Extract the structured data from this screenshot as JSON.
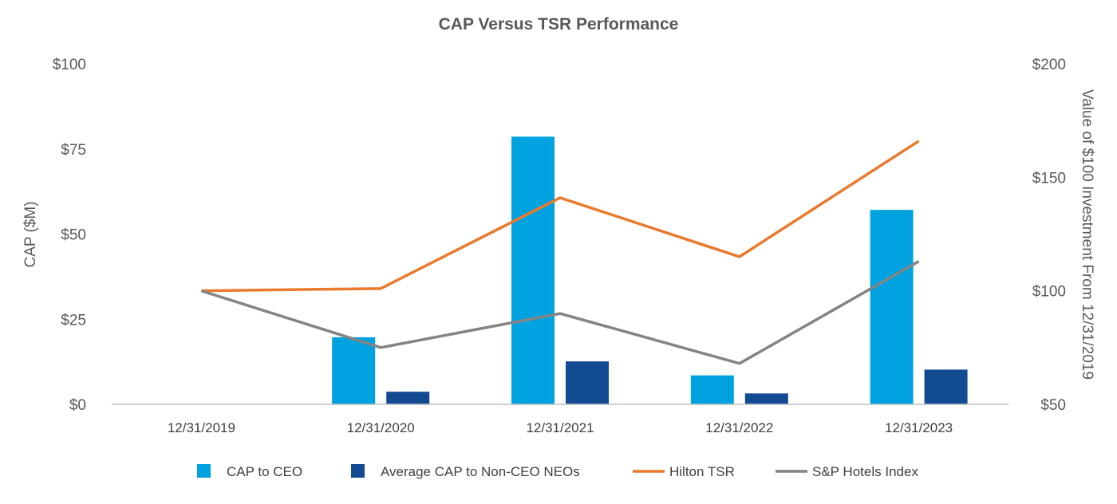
{
  "chart_data": {
    "type": "bar",
    "title": "CAP Versus TSR Performance",
    "categories": [
      "12/31/2019",
      "12/31/2020",
      "12/31/2021",
      "12/31/2022",
      "12/31/2023"
    ],
    "ylabel": "CAP ($M)",
    "ylabel_right": "Value of $100 Investment From 12/31/2019",
    "ylim": [
      0,
      100
    ],
    "ylim_right": [
      50,
      200
    ],
    "yticks": [
      "$0",
      "$25",
      "$50",
      "$75",
      "$100"
    ],
    "yticks_right": [
      "$50",
      "$100",
      "$150",
      "$200"
    ],
    "series": [
      {
        "name": "CAP to CEO",
        "type": "bar",
        "axis": "left",
        "color": "#00A3E0",
        "values": [
          null,
          19.7,
          78.6,
          8.5,
          57.1
        ]
      },
      {
        "name": "Average CAP to Non-CEO NEOs",
        "type": "bar",
        "axis": "left",
        "color": "#134B93",
        "values": [
          null,
          3.7,
          12.6,
          3.2,
          10.2
        ]
      },
      {
        "name": "Hilton TSR",
        "type": "line",
        "axis": "right",
        "color": "#E97A2E",
        "values": [
          100,
          101,
          141,
          115,
          166
        ]
      },
      {
        "name": "S&P Hotels Index",
        "type": "line",
        "axis": "right",
        "color": "#848484",
        "values": [
          100,
          75,
          90,
          68,
          113
        ]
      }
    ],
    "legend": "bottom"
  }
}
